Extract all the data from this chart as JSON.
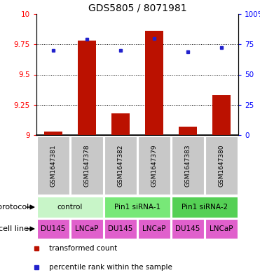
{
  "title": "GDS5805 / 8071981",
  "samples": [
    "GSM1647381",
    "GSM1647378",
    "GSM1647382",
    "GSM1647379",
    "GSM1647383",
    "GSM1647380"
  ],
  "red_values": [
    9.03,
    9.78,
    9.18,
    9.86,
    9.07,
    9.33
  ],
  "blue_values": [
    70,
    79,
    70,
    80,
    69,
    72
  ],
  "ylim_left": [
    9.0,
    10.0
  ],
  "ylim_right": [
    0,
    100
  ],
  "yticks_left": [
    9.0,
    9.25,
    9.5,
    9.75,
    10.0
  ],
  "yticks_right": [
    0,
    25,
    50,
    75,
    100
  ],
  "ytick_labels_left": [
    "9",
    "9.25",
    "9.5",
    "9.75",
    "10"
  ],
  "ytick_labels_right": [
    "0",
    "25",
    "50",
    "75",
    "100%"
  ],
  "dotted_lines": [
    9.25,
    9.5,
    9.75
  ],
  "protocol_groups": [
    {
      "label": "control",
      "cols": [
        0,
        1
      ],
      "color": "#c8f5c8"
    },
    {
      "label": "Pin1 siRNA-1",
      "cols": [
        2,
        3
      ],
      "color": "#78e878"
    },
    {
      "label": "Pin1 siRNA-2",
      "cols": [
        4,
        5
      ],
      "color": "#55d055"
    }
  ],
  "cell_lines": [
    "DU145",
    "LNCaP",
    "DU145",
    "LNCaP",
    "DU145",
    "LNCaP"
  ],
  "cell_line_color": "#e060cc",
  "bar_color": "#bb1100",
  "dot_color": "#2222cc",
  "sample_bg_color": "#c8c8c8",
  "legend_red_label": "transformed count",
  "legend_blue_label": "percentile rank within the sample",
  "protocol_label": "protocol",
  "cell_line_label": "cell line",
  "title_fontsize": 10,
  "tick_fontsize": 7.5,
  "sample_fontsize": 6.5,
  "row_fontsize": 7.5
}
